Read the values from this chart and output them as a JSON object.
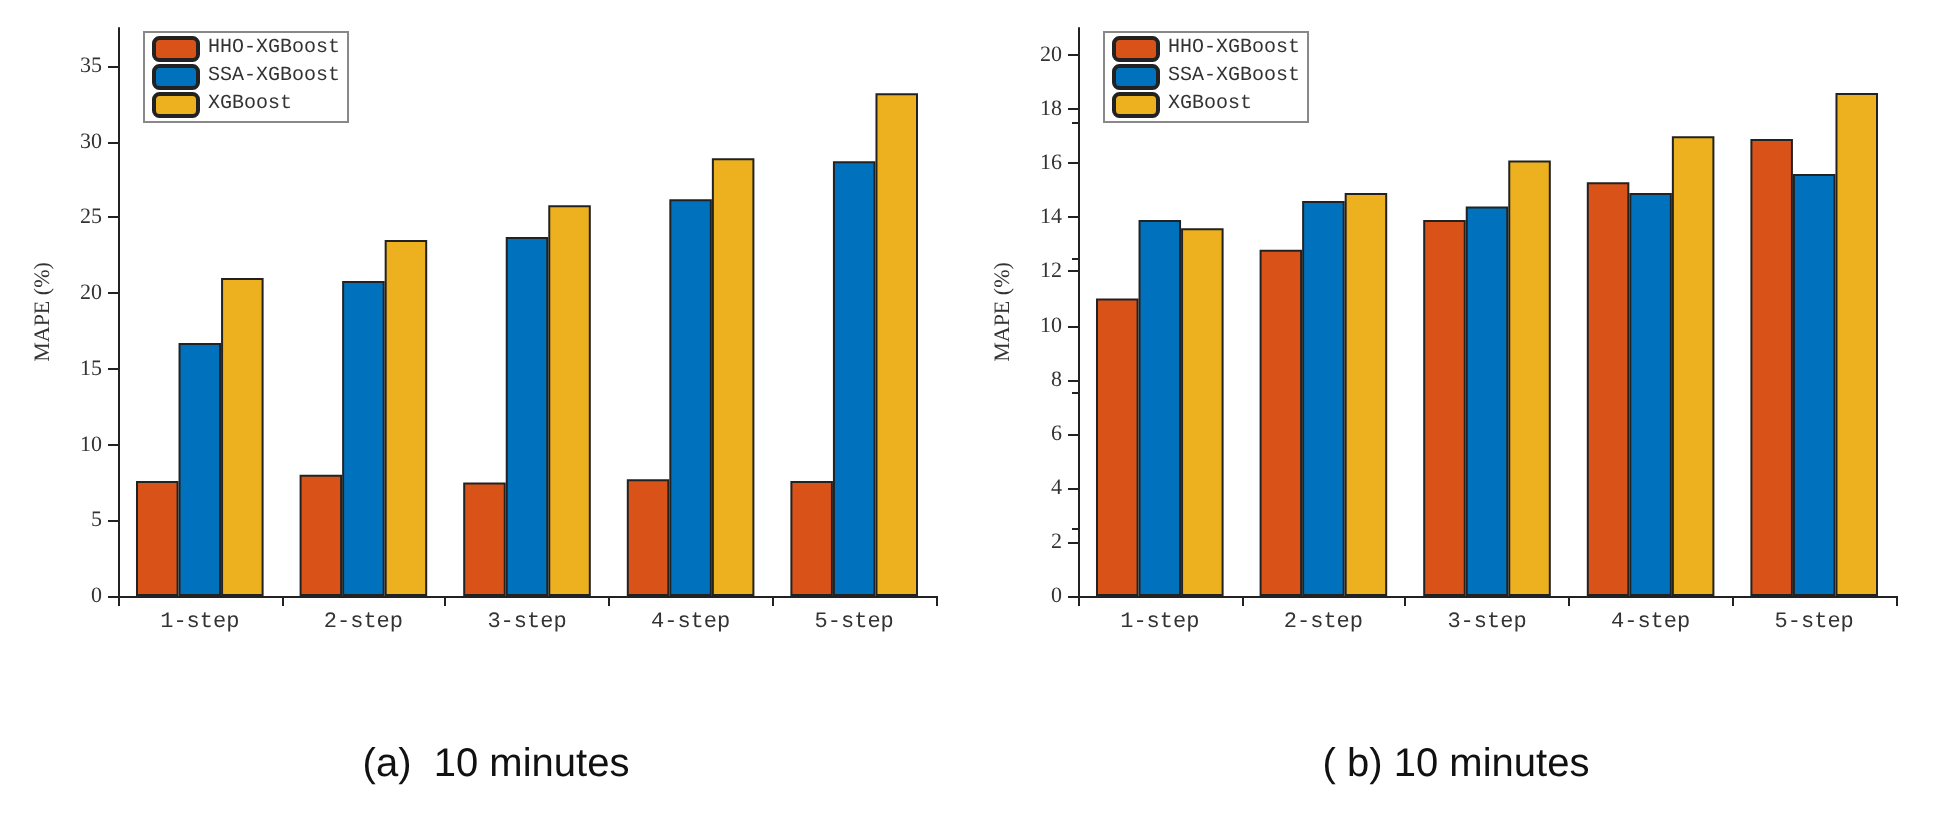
{
  "chart_data": [
    {
      "type": "bar",
      "ylabel": "MAPE (%)",
      "categories": [
        "1-step",
        "2-step",
        "3-step",
        "4-step",
        "5-step"
      ],
      "series": [
        {
          "name": "HHO-XGBoost",
          "color": "#d95319",
          "values": [
            7.6,
            8.0,
            7.5,
            7.7,
            7.6
          ]
        },
        {
          "name": "SSA-XGBoost",
          "color": "#0072bd",
          "values": [
            16.7,
            20.8,
            23.7,
            26.2,
            28.7
          ]
        },
        {
          "name": "XGBoost",
          "color": "#edb120",
          "values": [
            21.0,
            23.5,
            25.8,
            28.9,
            33.2
          ]
        }
      ],
      "ylim": [
        0,
        37.5
      ],
      "yticks": [
        0,
        5,
        10,
        15,
        20,
        25,
        30,
        35
      ],
      "grid": false,
      "legend": "top left",
      "annotations": [
        "(a)  10 minutes"
      ]
    },
    {
      "type": "bar",
      "ylabel": "MAPE (%)",
      "categories": [
        "1-step",
        "2-step",
        "3-step",
        "4-step",
        "5-step"
      ],
      "series": [
        {
          "name": "HHO-XGBoost",
          "color": "#d95319",
          "values": [
            11.0,
            12.8,
            13.9,
            15.3,
            16.9
          ]
        },
        {
          "name": "SSA-XGBoost",
          "color": "#0072bd",
          "values": [
            13.9,
            14.6,
            14.4,
            14.9,
            15.6
          ]
        },
        {
          "name": "XGBoost",
          "color": "#edb120",
          "values": [
            13.6,
            14.9,
            16.1,
            17.0,
            18.6
          ]
        }
      ],
      "ylim": [
        0,
        21
      ],
      "yticks": [
        0,
        2,
        4,
        6,
        8,
        10,
        12,
        14,
        16,
        18,
        20
      ],
      "grid": false,
      "legend": "top left",
      "annotations": [
        "( b) 10 minutes"
      ]
    }
  ]
}
